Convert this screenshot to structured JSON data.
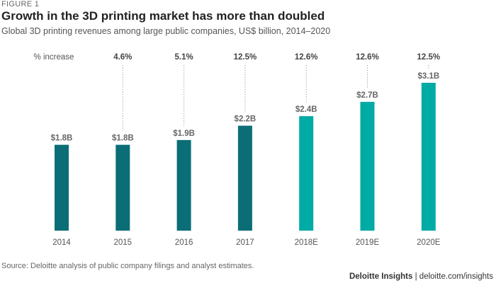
{
  "figure_label": "FIGURE 1",
  "source": "Source: Deloitte analysis of public company filings and analyst estimates.",
  "brand": {
    "name": "Deloitte Insights",
    "separator": "|",
    "url": "deloitte.com/insights"
  },
  "colors": {
    "actual": "#0b6e76",
    "estimate": "#00aaa5",
    "leader": "#999999",
    "value_label": "#666666",
    "axis_text": "#555555"
  },
  "chart_data": {
    "type": "bar",
    "title": "Growth in the 3D printing market has more than doubled",
    "subtitle": "Global 3D printing revenues among large public companies, US$ billion, 2014–2020",
    "categories": [
      "2014",
      "2015",
      "2016",
      "2017",
      "2018E",
      "2019E",
      "2020E"
    ],
    "values": [
      1.8,
      1.8,
      1.9,
      2.2,
      2.4,
      2.7,
      3.1
    ],
    "value_labels": [
      "$1.8B",
      "$1.8B",
      "$1.9B",
      "$2.2B",
      "$2.4B",
      "$2.7B",
      "$3.1B"
    ],
    "increase_header": "% increase",
    "increase_labels": [
      "",
      "4.6%",
      "5.1%",
      "12.5%",
      "12.6%",
      "12.6%",
      "12.5%"
    ],
    "estimated": [
      false,
      false,
      false,
      false,
      true,
      true,
      true
    ],
    "ylim": [
      0,
      3.1
    ],
    "xlabel": "",
    "ylabel": "",
    "grid": false,
    "legend": "none"
  }
}
